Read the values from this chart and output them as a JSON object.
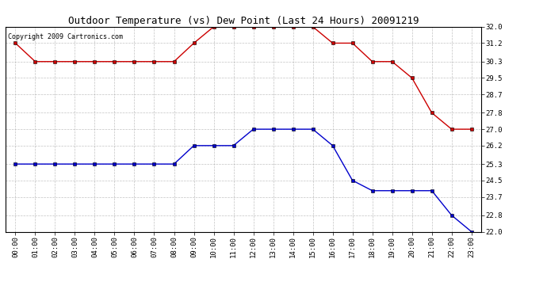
{
  "title": "Outdoor Temperature (vs) Dew Point (Last 24 Hours) 20091219",
  "copyright": "Copyright 2009 Cartronics.com",
  "hours": [
    "00:00",
    "01:00",
    "02:00",
    "03:00",
    "04:00",
    "05:00",
    "06:00",
    "07:00",
    "08:00",
    "09:00",
    "10:00",
    "11:00",
    "12:00",
    "13:00",
    "14:00",
    "15:00",
    "16:00",
    "17:00",
    "18:00",
    "19:00",
    "20:00",
    "21:00",
    "22:00",
    "23:00"
  ],
  "temp_red": [
    31.2,
    30.3,
    30.3,
    30.3,
    30.3,
    30.3,
    30.3,
    30.3,
    30.3,
    31.2,
    32.0,
    32.0,
    32.0,
    32.0,
    32.0,
    32.0,
    31.2,
    31.2,
    30.3,
    30.3,
    29.5,
    27.8,
    27.0,
    27.0
  ],
  "dew_blue": [
    25.3,
    25.3,
    25.3,
    25.3,
    25.3,
    25.3,
    25.3,
    25.3,
    25.3,
    26.2,
    26.2,
    26.2,
    27.0,
    27.0,
    27.0,
    27.0,
    26.2,
    24.5,
    24.0,
    24.0,
    24.0,
    24.0,
    22.8,
    22.0
  ],
  "ylim_min": 22.0,
  "ylim_max": 32.0,
  "yticks": [
    22.0,
    22.8,
    23.7,
    24.5,
    25.3,
    26.2,
    27.0,
    27.8,
    28.7,
    29.5,
    30.3,
    31.2,
    32.0
  ],
  "red_color": "#cc0000",
  "blue_color": "#0000cc",
  "bg_color": "#ffffff",
  "grid_color": "#aaaaaa",
  "title_fontsize": 9,
  "copyright_fontsize": 6,
  "tick_fontsize": 6.5
}
